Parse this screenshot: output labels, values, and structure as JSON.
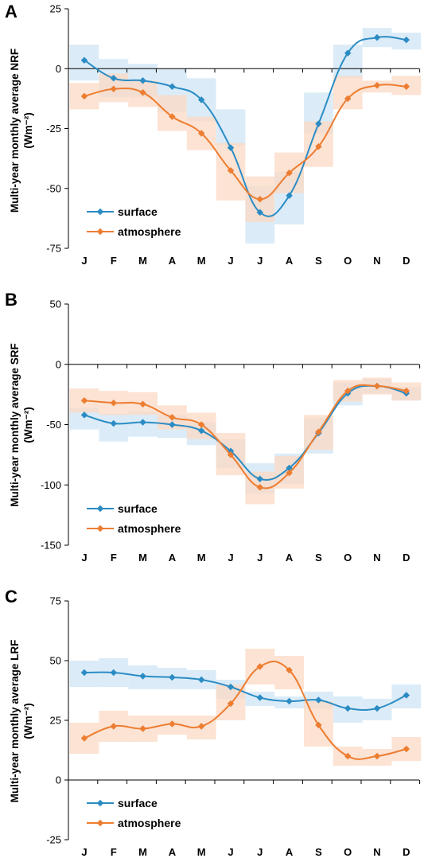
{
  "colors": {
    "surface": "#2b8cc4",
    "atmosphere": "#ed7d31",
    "surface_band": "#cfe5f6",
    "atmosphere_band": "#fbd9c4"
  },
  "chart_data": [
    {
      "type": "line",
      "panel": "A",
      "ylabel": "Multi-year monthly average NRF",
      "ylabel_unit": "(Wm⁻²)",
      "categories": [
        "J",
        "F",
        "M",
        "A",
        "M",
        "J",
        "J",
        "A",
        "S",
        "O",
        "N",
        "D"
      ],
      "ylim": [
        -75,
        25
      ],
      "yticks": [
        25,
        0,
        -25,
        -50,
        -75
      ],
      "legend_position": "bottom-left",
      "series": [
        {
          "name": "surface",
          "values": [
            3.5,
            -4,
            -5,
            -7.5,
            -13,
            -33,
            -60,
            -53,
            -23,
            6.5,
            13,
            12
          ],
          "band": [
            [
              -5,
              10
            ],
            [
              -12,
              4
            ],
            [
              -12,
              2
            ],
            [
              -18,
              0
            ],
            [
              -22,
              -4
            ],
            [
              -32,
              -17
            ],
            [
              -73,
              -49
            ],
            [
              -65,
              -43
            ],
            [
              -27,
              -10
            ],
            [
              -4,
              10
            ],
            [
              9,
              17
            ],
            [
              8,
              15
            ]
          ]
        },
        {
          "name": "atmosphere",
          "values": [
            -11.5,
            -8.5,
            -10,
            -20,
            -27,
            -42.5,
            -54.5,
            -43.5,
            -32.5,
            -12.5,
            -7,
            -7.5
          ],
          "band": [
            [
              -17,
              -6
            ],
            [
              -14,
              -2
            ],
            [
              -16,
              -5
            ],
            [
              -26,
              -11
            ],
            [
              -34,
              -20
            ],
            [
              -55,
              -31
            ],
            [
              -64,
              -45
            ],
            [
              -52,
              -35
            ],
            [
              -41,
              -22
            ],
            [
              -17,
              -3
            ],
            [
              -10,
              -5
            ],
            [
              -11,
              -3
            ]
          ]
        }
      ]
    },
    {
      "type": "line",
      "panel": "B",
      "ylabel": "Multi-year monthly average SRF",
      "ylabel_unit": "(Wm⁻²)",
      "categories": [
        "J",
        "F",
        "M",
        "A",
        "M",
        "J",
        "J",
        "A",
        "S",
        "O",
        "N",
        "D"
      ],
      "ylim": [
        -150,
        50
      ],
      "yticks": [
        50,
        0,
        -50,
        -100,
        -150
      ],
      "legend_position": "bottom-left",
      "series": [
        {
          "name": "surface",
          "values": [
            -42,
            -49,
            -48,
            -50,
            -55,
            -72,
            -95,
            -86,
            -57,
            -24,
            -18,
            -24
          ],
          "band": [
            [
              -54,
              -36
            ],
            [
              -64,
              -41
            ],
            [
              -60,
              -39
            ],
            [
              -61,
              -42
            ],
            [
              -67,
              -48
            ],
            [
              -86,
              -62
            ],
            [
              -107,
              -82
            ],
            [
              -99,
              -74
            ],
            [
              -74,
              -45
            ],
            [
              -34,
              -15
            ],
            [
              -24,
              -12
            ],
            [
              -30,
              -19
            ]
          ]
        },
        {
          "name": "atmosphere",
          "values": [
            -30,
            -32,
            -33,
            -44,
            -50,
            -75,
            -102,
            -90,
            -56,
            -22,
            -18,
            -22
          ],
          "band": [
            [
              -40,
              -20
            ],
            [
              -42,
              -22
            ],
            [
              -42,
              -23
            ],
            [
              -54,
              -34
            ],
            [
              -62,
              -40
            ],
            [
              -92,
              -57
            ],
            [
              -116,
              -89
            ],
            [
              -103,
              -76
            ],
            [
              -71,
              -42
            ],
            [
              -31,
              -13
            ],
            [
              -25,
              -11
            ],
            [
              -30,
              -15
            ]
          ]
        }
      ]
    },
    {
      "type": "line",
      "panel": "C",
      "ylabel": "Multi-year monthly average LRF",
      "ylabel_unit": "(Wm⁻²)",
      "categories": [
        "J",
        "F",
        "M",
        "A",
        "M",
        "J",
        "J",
        "A",
        "S",
        "O",
        "N",
        "D"
      ],
      "ylim": [
        -25,
        75
      ],
      "yticks": [
        75,
        50,
        25,
        0,
        -25
      ],
      "legend_position": "bottom-left",
      "series": [
        {
          "name": "surface",
          "values": [
            45,
            45,
            43.5,
            43,
            42,
            39,
            34.5,
            33,
            33.5,
            30,
            30,
            35.5
          ],
          "band": [
            [
              39,
              50
            ],
            [
              39,
              51
            ],
            [
              38,
              48
            ],
            [
              38,
              47
            ],
            [
              38,
              46
            ],
            [
              34,
              42
            ],
            [
              31,
              37
            ],
            [
              30,
              35
            ],
            [
              30,
              37
            ],
            [
              24,
              35
            ],
            [
              25,
              34
            ],
            [
              30,
              40
            ]
          ]
        },
        {
          "name": "atmosphere",
          "values": [
            17.5,
            22.5,
            21.5,
            23.5,
            22.5,
            32,
            47.5,
            46,
            23,
            10,
            10,
            13
          ],
          "band": [
            [
              11,
              24
            ],
            [
              16,
              29
            ],
            [
              16,
              27
            ],
            [
              19,
              27
            ],
            [
              17,
              27
            ],
            [
              25,
              40
            ],
            [
              40,
              55
            ],
            [
              38,
              52
            ],
            [
              14,
              33
            ],
            [
              6,
              14
            ],
            [
              6,
              13
            ],
            [
              8,
              18
            ]
          ]
        }
      ]
    }
  ]
}
